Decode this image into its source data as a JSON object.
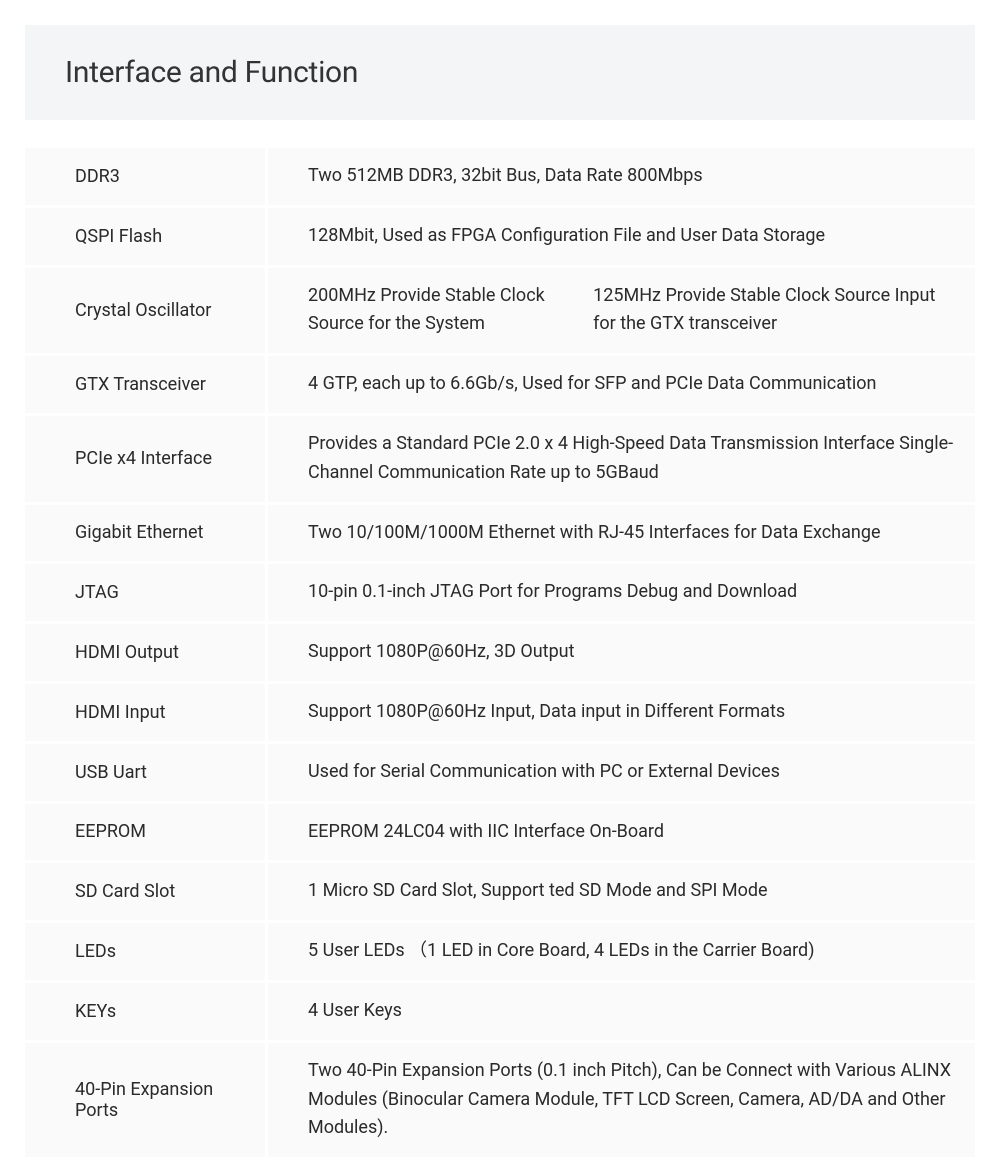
{
  "header": {
    "title": "Interface and Function"
  },
  "specs": [
    {
      "label": "DDR3",
      "value": "Two 512MB DDR3, 32bit Bus, Data Rate 800Mbps"
    },
    {
      "label": "QSPI Flash",
      "value": "128Mbit, Used as FPGA Configuration File and User Data Storage"
    },
    {
      "label": "Crystal Oscillator",
      "value": "200MHz Provide Stable Clock Source for the System\n125MHz Provide Stable Clock Source Input for the GTX transceiver"
    },
    {
      "label": "GTX Transceiver",
      "value": "4 GTP, each up to 6.6Gb/s, Used for SFP and PCIe Data Communication"
    },
    {
      "label": "PCIe x4 Interface",
      "value": "Provides a Standard PCIe 2.0 x 4 High-Speed Data Transmission Interface Single-Channel Communication Rate up to 5GBaud"
    },
    {
      "label": "Gigabit Ethernet",
      "value": "Two 10/100M/1000M Ethernet with RJ-45 Interfaces for Data Exchange"
    },
    {
      "label": "JTAG",
      "value": "10-pin 0.1-inch JTAG Port for Programs Debug and Download"
    },
    {
      "label": "HDMI Output",
      "value": "Support 1080P@60Hz, 3D Output"
    },
    {
      "label": "HDMI Input",
      "value": "Support 1080P@60Hz  Input, Data input in Different Formats"
    },
    {
      "label": "USB Uart",
      "value": "Used for Serial Communication with PC or External Devices"
    },
    {
      "label": "EEPROM",
      "value": "EEPROM 24LC04 with IIC Interface On-Board"
    },
    {
      "label": "SD Card Slot",
      "value": "1 Micro SD Card Slot,  Support ted SD Mode and SPI Mode"
    },
    {
      "label": "LEDs",
      "value": "5 User LEDs （1 LED in Core Board, 4 LEDs in the Carrier Board)"
    },
    {
      "label": "KEYs",
      "value": "4 User Keys"
    },
    {
      "label": "40-Pin Expansion Ports",
      "value": "Two 40-Pin Expansion Ports (0.1 inch Pitch), Can be Connect with Various ALINX Modules (Binocular Camera Module, TFT LCD Screen, Camera, AD/DA and Other Modules)."
    }
  ],
  "styling": {
    "header_bg": "#f4f5f6",
    "row_bg": "#fafafa",
    "gap_color": "#ffffff",
    "text_color": "#2a2a2a",
    "title_fontsize": 30,
    "body_fontsize": 18,
    "label_col_width": 240
  }
}
